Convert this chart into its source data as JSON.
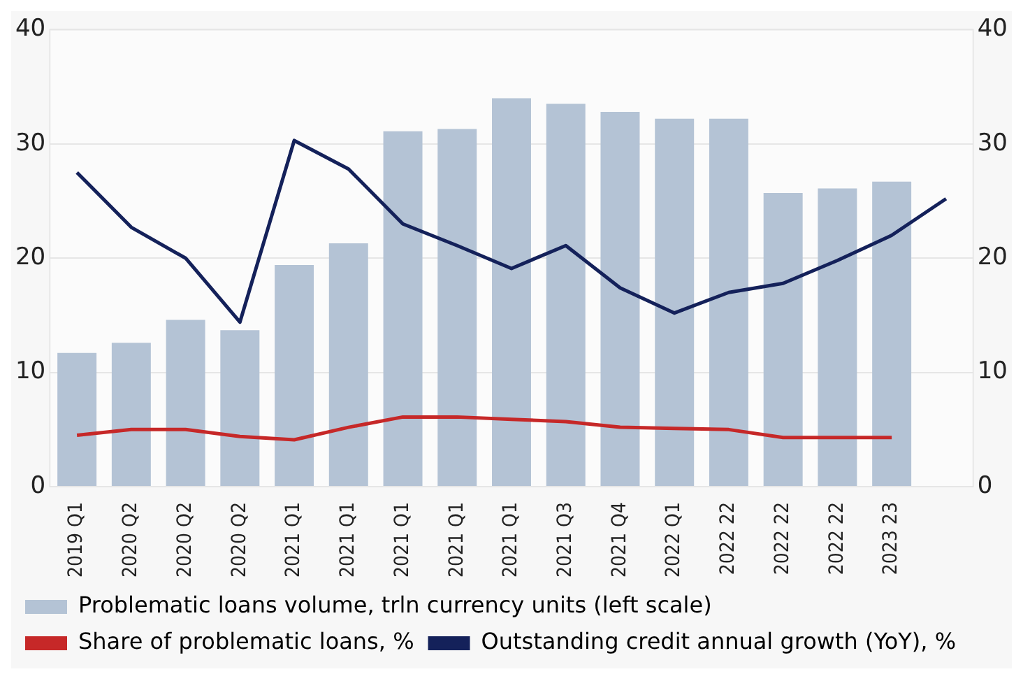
{
  "chart_data": {
    "type": "bar",
    "categories": [
      "2019 Q1",
      "2020 Q2",
      "2020 Q2",
      "2020 Q2",
      "2021 Q1",
      "2021 Q1",
      "2021 Q1",
      "2021 Q1",
      "2021 Q1",
      "2021 Q3",
      "2021 Q4",
      "2022 Q1",
      "2022 22",
      "2022 22",
      "2022 22",
      "2023 23",
      null
    ],
    "series": [
      {
        "name": "Problematic loans volume, trln currency units (left scale)",
        "color": "#b4c3d5",
        "values": [
          11.7,
          12.6,
          14.6,
          13.7,
          19.4,
          21.3,
          31.1,
          31.3,
          34.0,
          33.5,
          32.8,
          32.2,
          32.2,
          25.7,
          26.1,
          26.7,
          null
        ]
      },
      {
        "name": "Share of problematic loans, %",
        "type": "line",
        "color": "#c62828",
        "values": [
          4.5,
          5.0,
          5.0,
          4.4,
          4.1,
          5.2,
          6.1,
          6.1,
          5.9,
          5.7,
          5.2,
          5.1,
          5.0,
          4.3,
          4.3,
          4.3,
          null
        ]
      },
      {
        "name": "Outstanding credit annual growth (YoY), %",
        "type": "line",
        "axis": "y2",
        "color": "#14215a",
        "values": [
          27.5,
          22.7,
          20.0,
          14.4,
          30.3,
          27.8,
          23.0,
          21.1,
          19.1,
          21.1,
          17.4,
          15.2,
          17.0,
          17.8,
          19.8,
          22.0,
          25.2
        ]
      }
    ],
    "ylim": [
      0,
      40
    ],
    "yticks": [
      0,
      10,
      20,
      30,
      40
    ],
    "y2lim": [
      0,
      40
    ],
    "y2ticks": [
      0,
      10,
      20,
      30,
      40
    ],
    "grid": "y",
    "legend": "bottom",
    "marker": "none"
  }
}
